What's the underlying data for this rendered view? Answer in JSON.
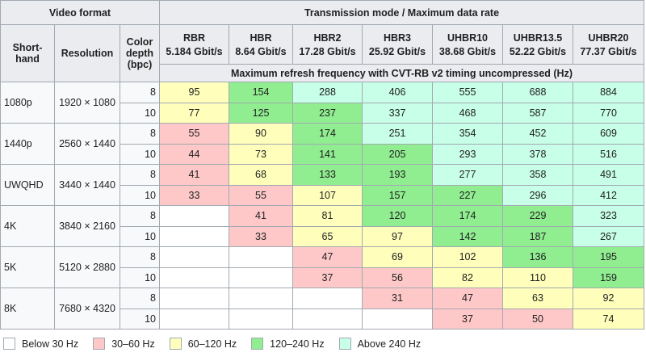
{
  "header": {
    "video_format": "Video format",
    "transmission": "Transmission mode / Maximum data rate",
    "shorthand": "Short­hand",
    "resolution": "Resolution",
    "color_depth": "Color depth (bpc)",
    "modes": [
      {
        "name": "RBR",
        "rate": "5.184 Gbit/s"
      },
      {
        "name": "HBR",
        "rate": "8.64 Gbit/s"
      },
      {
        "name": "HBR2",
        "rate": "17.28 Gbit/s"
      },
      {
        "name": "HBR3",
        "rate": "25.92 Gbit/s"
      },
      {
        "name": "UHBR10",
        "rate": "38.68 Gbit/s"
      },
      {
        "name": "UHBR13.5",
        "rate": "52.22 Gbit/s"
      },
      {
        "name": "UHBR20",
        "rate": "77.37 Gbit/s"
      }
    ],
    "subheader": "Maximum refresh frequency with CVT-RB v2 timing uncompressed (Hz)"
  },
  "groups": [
    {
      "shorthand": "1080p",
      "resolution": "1920 × 1080",
      "rows": [
        {
          "depth": 8,
          "values": [
            95,
            154,
            288,
            406,
            555,
            688,
            884
          ],
          "colors": [
            "#ffffbb",
            "#90ee90",
            "#c8ffe8",
            "#c8ffe8",
            "#c8ffe8",
            "#c8ffe8",
            "#c8ffe8"
          ]
        },
        {
          "depth": 10,
          "values": [
            77,
            125,
            237,
            337,
            468,
            587,
            770
          ],
          "colors": [
            "#ffffbb",
            "#90ee90",
            "#90ee90",
            "#c8ffe8",
            "#c8ffe8",
            "#c8ffe8",
            "#c8ffe8"
          ]
        }
      ]
    },
    {
      "shorthand": "1440p",
      "resolution": "2560 × 1440",
      "rows": [
        {
          "depth": 8,
          "values": [
            55,
            90,
            174,
            251,
            354,
            452,
            609
          ],
          "colors": [
            "#ffc8c8",
            "#ffffbb",
            "#90ee90",
            "#c8ffe8",
            "#c8ffe8",
            "#c8ffe8",
            "#c8ffe8"
          ]
        },
        {
          "depth": 10,
          "values": [
            44,
            73,
            141,
            205,
            293,
            378,
            516
          ],
          "colors": [
            "#ffc8c8",
            "#ffffbb",
            "#90ee90",
            "#90ee90",
            "#c8ffe8",
            "#c8ffe8",
            "#c8ffe8"
          ]
        }
      ]
    },
    {
      "shorthand": "UWQHD",
      "resolution": "3440 × 1440",
      "rows": [
        {
          "depth": 8,
          "values": [
            41,
            68,
            133,
            193,
            277,
            358,
            491
          ],
          "colors": [
            "#ffc8c8",
            "#ffffbb",
            "#90ee90",
            "#90ee90",
            "#c8ffe8",
            "#c8ffe8",
            "#c8ffe8"
          ]
        },
        {
          "depth": 10,
          "values": [
            33,
            55,
            107,
            157,
            227,
            296,
            412
          ],
          "colors": [
            "#ffc8c8",
            "#ffc8c8",
            "#ffffbb",
            "#90ee90",
            "#90ee90",
            "#c8ffe8",
            "#c8ffe8"
          ]
        }
      ]
    },
    {
      "shorthand": "4K",
      "resolution": "3840 × 2160",
      "rows": [
        {
          "depth": 8,
          "values": [
            null,
            41,
            81,
            120,
            174,
            229,
            323
          ],
          "colors": [
            "#ffffff",
            "#ffc8c8",
            "#ffffbb",
            "#90ee90",
            "#90ee90",
            "#90ee90",
            "#c8ffe8"
          ]
        },
        {
          "depth": 10,
          "values": [
            null,
            33,
            65,
            97,
            142,
            187,
            267
          ],
          "colors": [
            "#ffffff",
            "#ffc8c8",
            "#ffffbb",
            "#ffffbb",
            "#90ee90",
            "#90ee90",
            "#c8ffe8"
          ]
        }
      ]
    },
    {
      "shorthand": "5K",
      "resolution": "5120 × 2880",
      "rows": [
        {
          "depth": 8,
          "values": [
            null,
            null,
            47,
            69,
            102,
            136,
            195
          ],
          "colors": [
            "#ffffff",
            "#ffffff",
            "#ffc8c8",
            "#ffffbb",
            "#ffffbb",
            "#90ee90",
            "#90ee90"
          ]
        },
        {
          "depth": 10,
          "values": [
            null,
            null,
            37,
            56,
            82,
            110,
            159
          ],
          "colors": [
            "#ffffff",
            "#ffffff",
            "#ffc8c8",
            "#ffc8c8",
            "#ffffbb",
            "#ffffbb",
            "#90ee90"
          ]
        }
      ]
    },
    {
      "shorthand": "8K",
      "resolution": "7680 × 4320",
      "rows": [
        {
          "depth": 8,
          "values": [
            null,
            null,
            null,
            31,
            47,
            63,
            92
          ],
          "colors": [
            "#ffffff",
            "#ffffff",
            "#ffffff",
            "#ffc8c8",
            "#ffc8c8",
            "#ffffbb",
            "#ffffbb"
          ]
        },
        {
          "depth": 10,
          "values": [
            null,
            null,
            null,
            null,
            37,
            50,
            74
          ],
          "colors": [
            "#ffffff",
            "#ffffff",
            "#ffffff",
            "#ffffff",
            "#ffc8c8",
            "#ffc8c8",
            "#ffffbb"
          ]
        }
      ]
    }
  ],
  "legend": [
    {
      "label": "Below 30 Hz",
      "color": "#ffffff"
    },
    {
      "label": "30–60 Hz",
      "color": "#ffc8c8"
    },
    {
      "label": "60–120 Hz",
      "color": "#ffffbb"
    },
    {
      "label": "120–240 Hz",
      "color": "#90ee90"
    },
    {
      "label": "Above 240 Hz",
      "color": "#c8ffe8"
    }
  ]
}
